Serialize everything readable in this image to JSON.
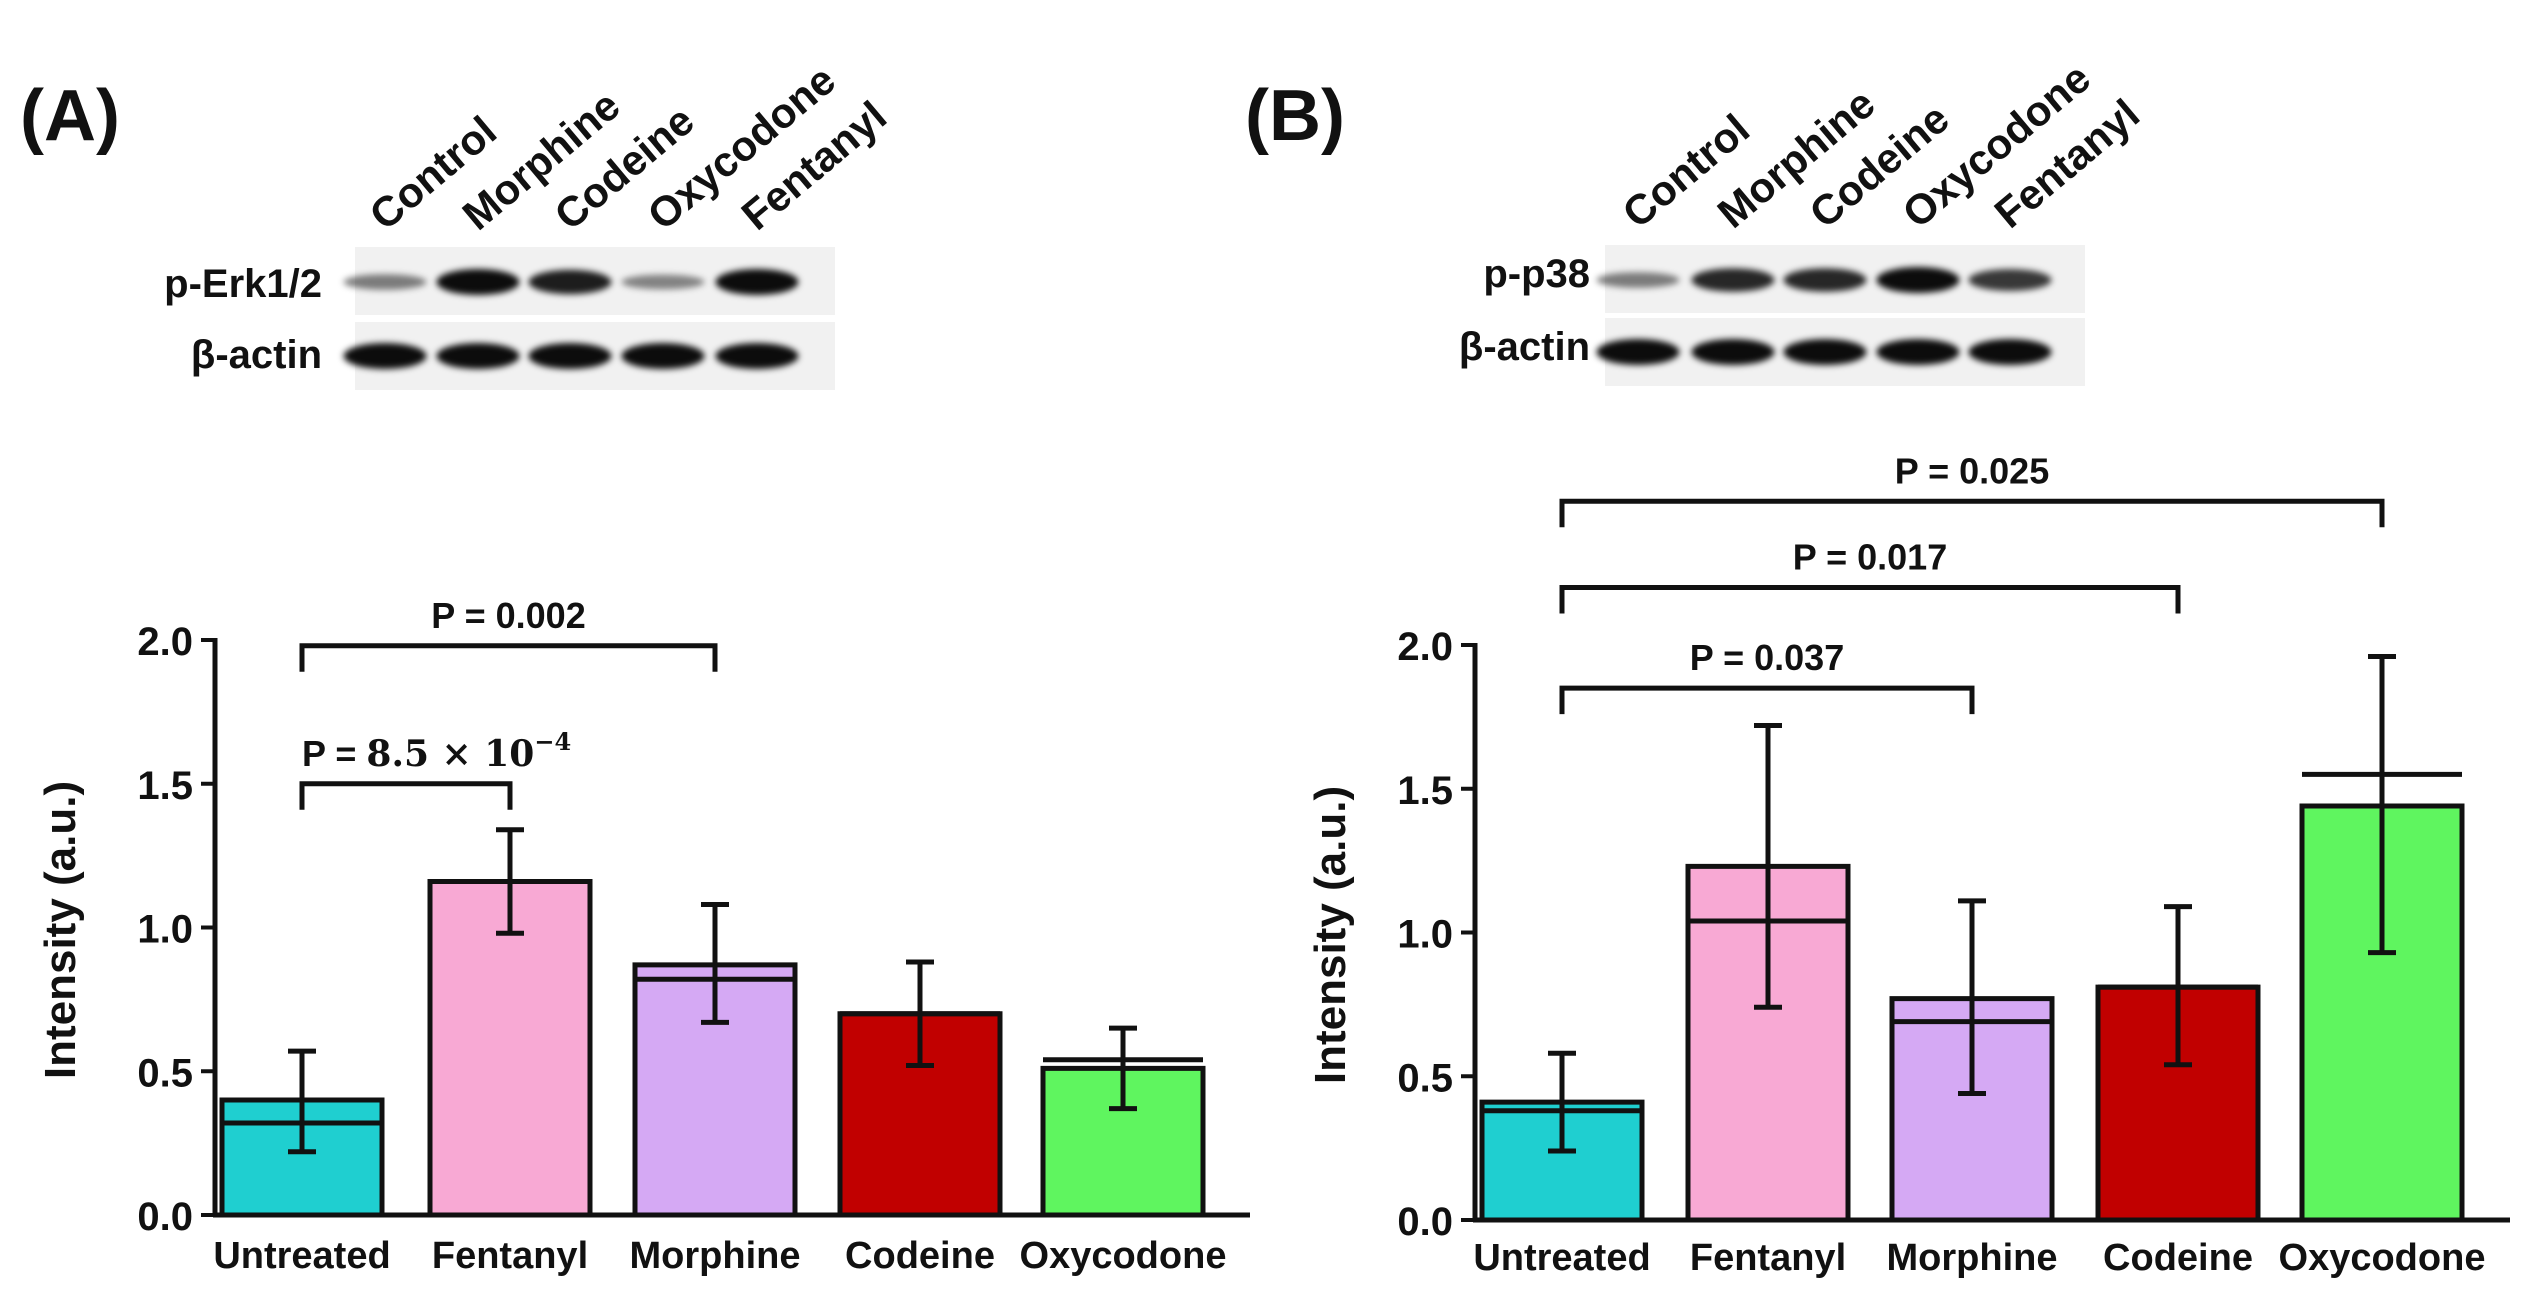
{
  "colors": {
    "untreated": "#1fcfd0",
    "fentanyl": "#f8a9d4",
    "morphine": "#d5a9f4",
    "codeine": "#c10000",
    "oxycodone": "#5ff55f",
    "axis": "#111111"
  },
  "chart_data": [
    {
      "type": "bar",
      "panel_label": "(A)",
      "ylabel": "Intensity (a.u.)",
      "xlabel": "",
      "ylim": [
        0,
        2.0
      ],
      "yticks": [
        "0.0",
        "0.5",
        "1.0",
        "1.5",
        "2.0"
      ],
      "categories": [
        "Untreated",
        "Fentanyl",
        "Morphine",
        "Codeine",
        "Oxycodone"
      ],
      "values": [
        0.4,
        1.16,
        0.87,
        0.7,
        0.51
      ],
      "medians": [
        0.32,
        1.16,
        0.82,
        0.7,
        0.54
      ],
      "error_low": [
        0.22,
        0.98,
        0.67,
        0.52,
        0.37
      ],
      "error_high": [
        0.57,
        1.34,
        1.08,
        0.88,
        0.65
      ],
      "comparisons": [
        {
          "from": 0,
          "to": 1,
          "label_prefix": "P = ",
          "label_value": "8.5 × 10",
          "label_exp": "−4",
          "y": 1.5
        },
        {
          "from": 0,
          "to": 2,
          "label": "P = 0.002",
          "y": 1.98
        }
      ],
      "blot": {
        "lanes": [
          "Control",
          "Morphine",
          "Codeine",
          "Oxycodone",
          "Fentanyl"
        ],
        "rows": [
          {
            "label": "p-Erk1/2",
            "intensities": [
              0.35,
              1.0,
              0.9,
              0.3,
              1.0
            ]
          },
          {
            "label": "β-actin",
            "intensities": [
              1.0,
              1.0,
              1.0,
              1.0,
              1.0
            ]
          }
        ]
      }
    },
    {
      "type": "bar",
      "panel_label": "(B)",
      "ylabel": "Intensity (a.u.)",
      "xlabel": "",
      "ylim": [
        0,
        2.0
      ],
      "yticks": [
        "0.0",
        "0.5",
        "1.0",
        "1.5",
        "2.0"
      ],
      "categories": [
        "Untreated",
        "Fentanyl",
        "Morphine",
        "Codeine",
        "Oxycodone"
      ],
      "values": [
        0.41,
        1.23,
        0.77,
        0.81,
        1.44
      ],
      "medians": [
        0.38,
        1.04,
        0.69,
        0.81,
        1.55
      ],
      "error_low": [
        0.24,
        0.74,
        0.44,
        0.54,
        0.93
      ],
      "error_high": [
        0.58,
        1.72,
        1.11,
        1.09,
        1.96
      ],
      "comparisons": [
        {
          "from": 0,
          "to": 2,
          "label": "P = 0.037",
          "y": 1.85
        },
        {
          "from": 0,
          "to": 3,
          "label": "P = 0.017",
          "y": 2.2
        },
        {
          "from": 0,
          "to": 4,
          "label": "P = 0.025",
          "y": 2.5
        }
      ],
      "blot": {
        "lanes": [
          "Control",
          "Morphine",
          "Codeine",
          "Oxycodone",
          "Fentanyl"
        ],
        "rows": [
          {
            "label": "p-p38",
            "intensities": [
              0.35,
              0.85,
              0.85,
              1.0,
              0.75
            ]
          },
          {
            "label": "β-actin",
            "intensities": [
              1.0,
              1.0,
              1.0,
              1.0,
              1.0
            ]
          }
        ]
      }
    }
  ]
}
